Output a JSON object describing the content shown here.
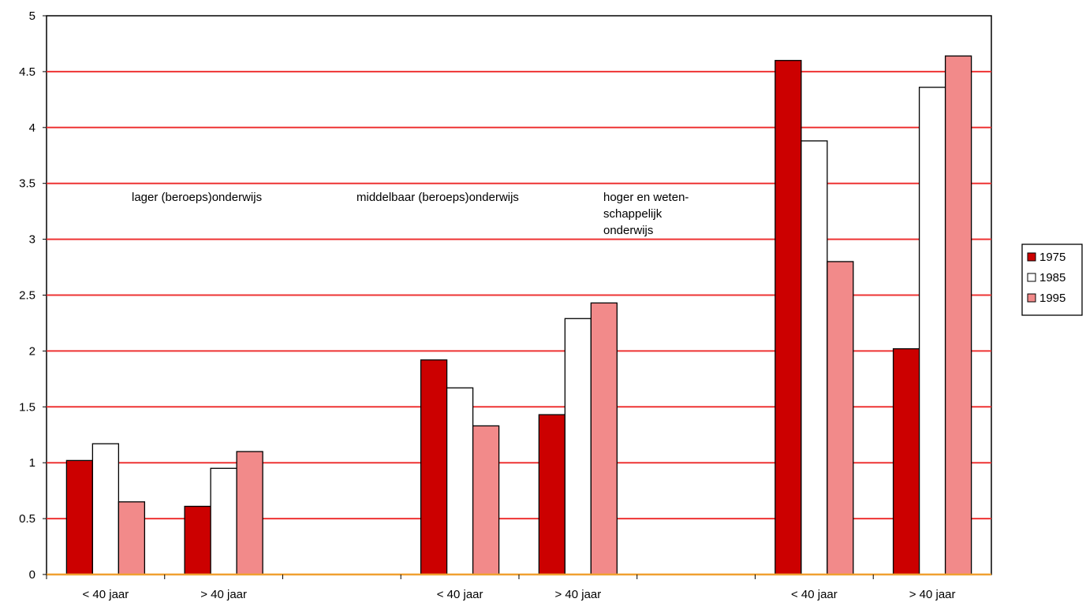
{
  "chart_data": {
    "type": "bar",
    "title": "",
    "xlabel": "",
    "ylabel": "",
    "ylim": [
      0,
      5
    ],
    "yticks": [
      "0",
      "0.5",
      "1",
      "1.5",
      "2",
      "2.5",
      "3",
      "3.5",
      "4",
      "4.5",
      "5"
    ],
    "grid": true,
    "legend_position": "right",
    "categories": [
      "< 40 jaar",
      "> 40 jaar",
      "",
      "< 40 jaar",
      "> 40 jaar",
      "",
      "< 40 jaar",
      "> 40 jaar"
    ],
    "groups": [
      {
        "label": "lager (beroeps)onderwijs"
      },
      {
        "label": "middelbaar (beroeps)onderwijs"
      },
      {
        "label": "hoger en weten-\nschappelijk\nonderwijs"
      }
    ],
    "series": [
      {
        "name": "1975",
        "color": "#cc0000",
        "values": [
          1.02,
          0.61,
          null,
          1.92,
          1.43,
          null,
          4.6,
          2.02
        ]
      },
      {
        "name": "1985",
        "color": "#ffffff",
        "values": [
          1.17,
          0.95,
          null,
          1.67,
          2.29,
          null,
          3.88,
          4.36
        ]
      },
      {
        "name": "1995",
        "color": "#f28a8a",
        "values": [
          0.65,
          1.1,
          null,
          1.33,
          2.43,
          null,
          2.8,
          4.64
        ]
      }
    ],
    "colors": {
      "grid": "#ee3333",
      "axis": "#000000",
      "x_axis_line": "#f0a030"
    }
  }
}
